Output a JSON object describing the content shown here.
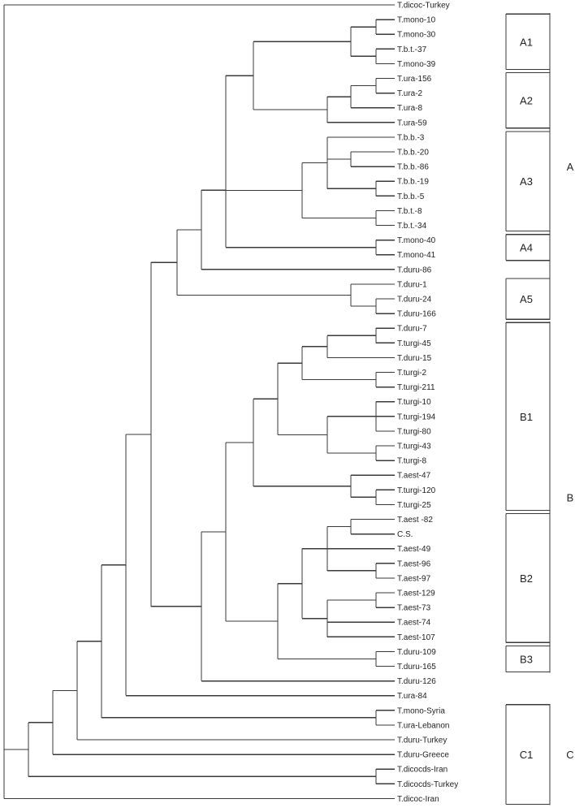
{
  "tree": {
    "leaves": [
      "T.dicoc-Turkey",
      "T.mono-10",
      "T.mono-30",
      "T.b.t.-37",
      "T.mono-39",
      "T.ura-156",
      "T.ura-2",
      "T.ura-8",
      "T.ura-59",
      "T.b.b.-3",
      "T.b.b.-20",
      "T.b.b.-86",
      "T.b.b.-19",
      "T.b.b.-5",
      "T.b.t.-8",
      "T.b.t.-34",
      "T.mono-40",
      "T.mono-41",
      "T.duru-86",
      "T.duru-1",
      "T.duru-24",
      "T.duru-166",
      "T.duru-7",
      "T.turgi-45",
      "T.duru-15",
      "T.turgi-2",
      "T.turgi-211",
      "T.turgi-10",
      "T.turgi-194",
      "T.turgi-80",
      "T.turgi-43",
      "T.turgi-8",
      "T.aest-47",
      "T.turgi-120",
      "T.turgi-25",
      "T.aest -82",
      "C.S.",
      "T.aest-49",
      "T.aest-96",
      "T.aest-97",
      "T.aest-129",
      "T.aest-73",
      "T.aest-74",
      "T.aest-107",
      "T.duru-109",
      "T.duru-165",
      "T.duru-126",
      "T.ura-84",
      "T.mono-Syria",
      "T.ura-Lebanon",
      "T.duru-Turkey",
      "T.duru-Greece",
      "T.dicocds-Iran",
      "T.dicocds-Turkey",
      "T.dicoc-Iran"
    ],
    "groups": [
      {
        "label": "A1",
        "first": 1,
        "last": 4
      },
      {
        "label": "A2",
        "first": 5,
        "last": 8
      },
      {
        "label": "A3",
        "first": 9,
        "last": 15
      },
      {
        "label": "A4",
        "first": 16,
        "last": 17
      },
      {
        "label": "A5",
        "first": 19,
        "last": 21
      },
      {
        "label": "B1",
        "first": 22,
        "last": 34
      },
      {
        "label": "B2",
        "first": 35,
        "last": 43
      },
      {
        "label": "B3",
        "first": 44,
        "last": 45
      },
      {
        "label": "C1",
        "first": 48,
        "last": 54
      }
    ],
    "clusters": [
      {
        "label": "A",
        "first": 1,
        "last": 21
      },
      {
        "label": "B",
        "first": 22,
        "last": 45
      },
      {
        "label": "C",
        "first": 48,
        "last": 54
      }
    ]
  }
}
